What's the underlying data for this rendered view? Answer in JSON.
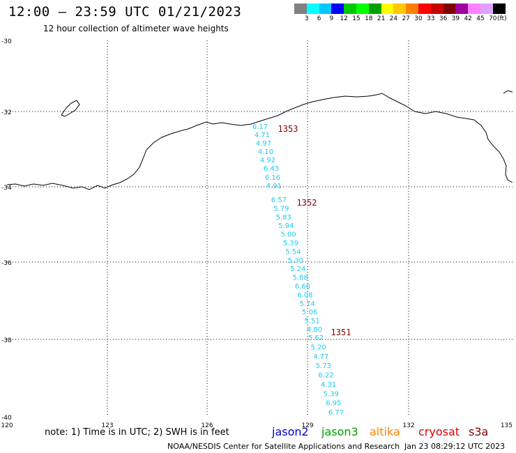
{
  "header": {
    "title": "12:00 — 23:59 UTC 01/21/2023",
    "subtitle": "12 hour collection of altimeter wave heights"
  },
  "legend": {
    "unit": "(ft)",
    "colors": [
      "#808080",
      "#00ffff",
      "#00c8ff",
      "#0000ff",
      "#00c800",
      "#00ff00",
      "#00a000",
      "#ffff00",
      "#ffc800",
      "#ff7f00",
      "#ff0000",
      "#c80000",
      "#800000",
      "#a000a0",
      "#ff80ff",
      "#e0a0ff",
      "#000000"
    ],
    "labels": [
      "3",
      "6",
      "9",
      "12",
      "15",
      "18",
      "21",
      "24",
      "27",
      "30",
      "33",
      "36",
      "39",
      "42",
      "45",
      "70"
    ]
  },
  "axes": {
    "y_labels": [
      "-30",
      "-32",
      "-34",
      "-36",
      "-38",
      "-40"
    ],
    "x_labels": [
      "120",
      "123",
      "126",
      "129",
      "132",
      "135"
    ]
  },
  "passes": [
    {
      "id": "1353",
      "color": "#800000"
    },
    {
      "id": "1352",
      "color": "#800000"
    },
    {
      "id": "1351",
      "color": "#800000"
    }
  ],
  "wave_heights": {
    "color": "#1ec8ee",
    "values": [
      "6.17",
      "4.71",
      "4.97",
      "4.10",
      "4.92",
      "6.43",
      "6.16",
      "4.91",
      "6.57",
      "5.79",
      "5.83",
      "5.94",
      "5.00",
      "5.39",
      "5.54",
      "5.30",
      "5.24",
      "5.88",
      "6.60",
      "6.08",
      "5.74",
      "5.06",
      "5.51",
      "4.80",
      "5.62",
      "5.20",
      "4.77",
      "5.73",
      "6.22",
      "4.31",
      "5.39",
      "6.95",
      "6.77"
    ]
  },
  "footer": {
    "note": "note: 1) Time is in UTC; 2) SWH is in feet",
    "satellites": [
      {
        "name": "jason2",
        "color": "#0000cc"
      },
      {
        "name": "jason3",
        "color": "#00a000"
      },
      {
        "name": "altika",
        "color": "#ff8000"
      },
      {
        "name": "cryosat",
        "color": "#dd0000"
      },
      {
        "name": "s3a",
        "color": "#800000"
      }
    ],
    "credit": "NOAA/NESDIS Center for Satellite Applications and Research",
    "timestamp": "Jan 23 08:29:12 UTC 2023"
  }
}
